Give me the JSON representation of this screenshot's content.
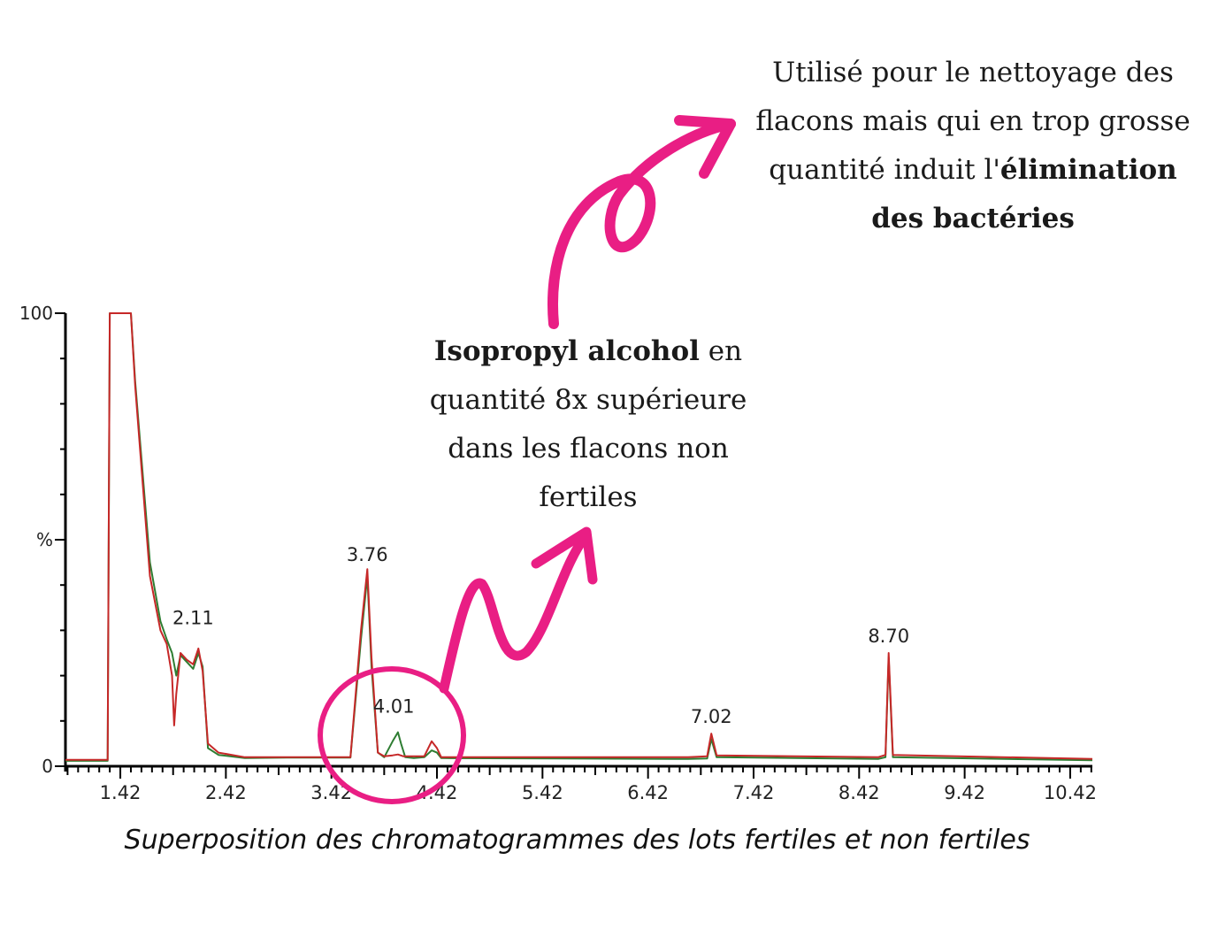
{
  "chart_data": {
    "type": "line",
    "title": "",
    "xlabel": "",
    "ylabel": "%",
    "xlim": [
      0.9,
      10.63
    ],
    "ylim": [
      0,
      100
    ],
    "x_ticks": [
      "1.42",
      "2.42",
      "3.42",
      "4.42",
      "5.42",
      "6.42",
      "7.42",
      "8.42",
      "9.42",
      "10.42"
    ],
    "y_ticks": [
      "0",
      "%",
      "100"
    ],
    "peak_labels": [
      {
        "x": 3.76,
        "text": "3.76",
        "y": 43
      },
      {
        "x": 2.11,
        "text": "2.11",
        "y": 29
      },
      {
        "x": 4.01,
        "text": "4.01",
        "y": 9.5
      },
      {
        "x": 7.02,
        "text": "7.02",
        "y": 7.2
      },
      {
        "x": 8.7,
        "text": "8.70",
        "y": 25
      }
    ],
    "series": [
      {
        "color": "#2e7d32",
        "points": [
          [
            0.9,
            1.2
          ],
          [
            1.3,
            1.2
          ],
          [
            1.32,
            100
          ],
          [
            1.52,
            100
          ],
          [
            1.56,
            85
          ],
          [
            1.62,
            68
          ],
          [
            1.7,
            45
          ],
          [
            1.8,
            32
          ],
          [
            1.86,
            28
          ],
          [
            1.91,
            25
          ],
          [
            1.95,
            20
          ],
          [
            1.99,
            24.5
          ],
          [
            2.05,
            23
          ],
          [
            2.11,
            21.5
          ],
          [
            2.16,
            25
          ],
          [
            2.2,
            22
          ],
          [
            2.25,
            4
          ],
          [
            2.35,
            2.5
          ],
          [
            2.6,
            1.8
          ],
          [
            3.0,
            1.9
          ],
          [
            3.6,
            1.9
          ],
          [
            3.7,
            28
          ],
          [
            3.76,
            42
          ],
          [
            3.8,
            22
          ],
          [
            3.86,
            3
          ],
          [
            3.92,
            2
          ],
          [
            4.0,
            5.5
          ],
          [
            4.05,
            7.5
          ],
          [
            4.08,
            5
          ],
          [
            4.12,
            2
          ],
          [
            4.2,
            1.8
          ],
          [
            4.3,
            2
          ],
          [
            4.37,
            3.5
          ],
          [
            4.42,
            3
          ],
          [
            4.46,
            1.8
          ],
          [
            6.8,
            1.6
          ],
          [
            6.98,
            1.7
          ],
          [
            7.02,
            6
          ],
          [
            7.07,
            2
          ],
          [
            8.6,
            1.6
          ],
          [
            8.67,
            2
          ],
          [
            8.7,
            24
          ],
          [
            8.74,
            2
          ],
          [
            10.63,
            1.3
          ]
        ]
      },
      {
        "color": "#c62828",
        "points": [
          [
            0.9,
            1.4
          ],
          [
            1.3,
            1.4
          ],
          [
            1.32,
            100
          ],
          [
            1.52,
            100
          ],
          [
            1.56,
            84
          ],
          [
            1.62,
            66
          ],
          [
            1.7,
            42
          ],
          [
            1.8,
            30
          ],
          [
            1.86,
            27
          ],
          [
            1.91,
            20
          ],
          [
            1.93,
            9
          ],
          [
            1.95,
            16
          ],
          [
            1.99,
            25
          ],
          [
            2.05,
            23.5
          ],
          [
            2.11,
            22.5
          ],
          [
            2.16,
            26
          ],
          [
            2.2,
            21
          ],
          [
            2.25,
            5
          ],
          [
            2.35,
            3
          ],
          [
            2.6,
            2
          ],
          [
            3.0,
            2
          ],
          [
            3.6,
            2
          ],
          [
            3.7,
            30
          ],
          [
            3.76,
            43.5
          ],
          [
            3.8,
            24
          ],
          [
            3.86,
            3
          ],
          [
            3.92,
            2.2
          ],
          [
            4.0,
            2.4
          ],
          [
            4.05,
            2.6
          ],
          [
            4.1,
            2.2
          ],
          [
            4.3,
            2.2
          ],
          [
            4.37,
            5.5
          ],
          [
            4.42,
            4
          ],
          [
            4.46,
            2
          ],
          [
            6.8,
            2
          ],
          [
            6.98,
            2.2
          ],
          [
            7.02,
            7.2
          ],
          [
            7.07,
            2.4
          ],
          [
            8.6,
            2
          ],
          [
            8.67,
            2.5
          ],
          [
            8.7,
            25
          ],
          [
            8.74,
            2.5
          ],
          [
            10.63,
            1.6
          ]
        ]
      }
    ]
  },
  "annotations": {
    "top_bold_1": "élimination",
    "top_line1": "Utilisé pour le nettoyage des",
    "top_line2": "flacons mais qui en trop grosse",
    "top_line3": "quantité induit l'",
    "top_bold_2": "des bactéries",
    "mid_bold": "Isopropyl alcohol",
    "mid_line1_rest": " en",
    "mid_line2": "quantité 8x supérieure",
    "mid_line3": "dans les flacons non",
    "mid_line4": "fertiles"
  },
  "caption": "Superposition des chromatogrammes des lots fertiles et non fertiles",
  "colors": {
    "accent": "#e91e84",
    "axis": "#000000"
  }
}
